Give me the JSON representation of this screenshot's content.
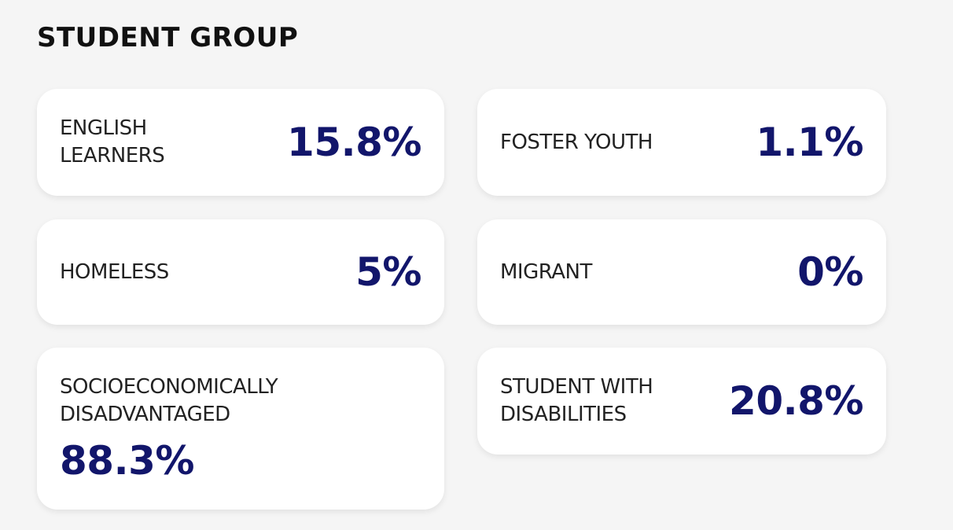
{
  "title": "STUDENT GROUP",
  "accent_color": "#12166b",
  "cards": [
    {
      "label_lines": [
        "ENGLISH",
        "LEARNERS"
      ],
      "value": "15.8%"
    },
    {
      "label_lines": [
        "FOSTER YOUTH"
      ],
      "value": "1.1%"
    },
    {
      "label_lines": [
        "HOMELESS"
      ],
      "value": "5%"
    },
    {
      "label_lines": [
        "MIGRANT"
      ],
      "value": "0%"
    },
    {
      "label_lines": [
        "SOCIOECONOMICALLY",
        "DISADVANTAGED"
      ],
      "value": "88.3%"
    },
    {
      "label_lines": [
        "STUDENT WITH",
        "DISABILITIES"
      ],
      "value": "20.8%"
    }
  ]
}
